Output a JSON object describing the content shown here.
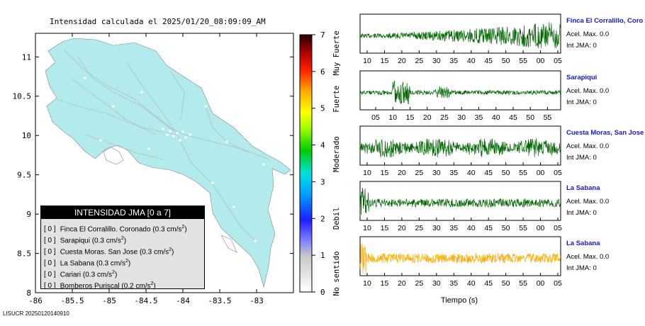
{
  "title": "Intensidad calculada el 2025/01/20_08:09:09_AM",
  "footer": "LISUCR 20250120140910",
  "legend": {
    "title": "INTENSIDAD JMA [0 a 7]",
    "items": [
      {
        "value": "[ 0 ]",
        "label": "Finca El Corralillo. Coronado (0.3 cm/s",
        "sup": "2",
        "tail": ")"
      },
      {
        "value": "[ 0 ]",
        "label": "Sarapiqui (0.3 cm/s",
        "sup": "2",
        "tail": ")"
      },
      {
        "value": "[ 0 ]",
        "label": "Cuesta Moras. San Jose (0.3 cm/s",
        "sup": "2",
        "tail": ")"
      },
      {
        "value": "[ 0 ]",
        "label": "La Sabana (0.3 cm/s",
        "sup": "2",
        "tail": ")"
      },
      {
        "value": "[ 0 ]",
        "label": "Cariari (0.3 cm/s",
        "sup": "2",
        "tail": ")"
      },
      {
        "value": "[ 0 ]",
        "label": "Bomberos Puriscal (0.2 cm/s",
        "sup": "2",
        "tail": ")"
      }
    ]
  },
  "colorbar": {
    "ticks": [
      "0",
      "1",
      "2",
      "3",
      "4",
      "5",
      "6",
      "7"
    ],
    "labels": [
      "No sentido",
      "Debil",
      "Moderado",
      "Fuerte",
      "Muy Fuerte"
    ]
  },
  "waveform_xlabel": "Tiempo (s)",
  "stations": [
    {
      "name": "Finca El Corralillo, Coro",
      "acc": "Acel. Max. 0.0",
      "int": "Int JMA: 0",
      "ticks": [
        "10",
        "15",
        "20",
        "25",
        "30",
        "35",
        "40",
        "45",
        "50",
        "55",
        "00",
        "05"
      ],
      "color": "#006400"
    },
    {
      "name": "Sarapiqui",
      "acc": "Acel. Max. 0.0",
      "int": "Int JMA: 0",
      "ticks": [
        "05",
        "10",
        "15",
        "20",
        "25",
        "30",
        "35",
        "40",
        "45",
        "50",
        "55"
      ],
      "color": "#006400"
    },
    {
      "name": "Cuesta Moras, San Jose",
      "acc": "Acel. Max. 0.0",
      "int": "Int JMA: 0",
      "ticks": [
        "10",
        "15",
        "20",
        "25",
        "30",
        "35",
        "40",
        "45",
        "50",
        "55",
        "00",
        "05"
      ],
      "color": "#006400"
    },
    {
      "name": "La Sabana",
      "acc": "Acel. Max. 0.0",
      "int": "Int JMA: 0",
      "ticks": [
        "10",
        "15",
        "20",
        "25",
        "30",
        "35",
        "40",
        "45",
        "50",
        "55",
        "00",
        "05"
      ],
      "color": "#006400"
    },
    {
      "name": "La Sabana",
      "acc": "Acel. Max. 0.0",
      "int": "Int JMA: 0",
      "ticks": [
        "10",
        "15",
        "20",
        "25",
        "30",
        "35",
        "40",
        "45",
        "50",
        "55",
        "00",
        "05"
      ],
      "color": "#ffaa00"
    }
  ],
  "chart_data": [
    {
      "type": "scatter",
      "title": "Intensidad calculada el 2025/01/20_08:09:09_AM",
      "xlabel": "",
      "ylabel": "",
      "x_ticks": [
        -86,
        -85.5,
        -85,
        -84.5,
        -84,
        -83.5,
        -83
      ],
      "y_ticks": [
        8,
        8.5,
        9,
        9.5,
        10,
        10.5,
        11
      ],
      "xlim": [
        -86,
        -82.5
      ],
      "ylim": [
        8,
        11.3
      ],
      "colors": {
        "land": "#b3ebed",
        "sea": "#ffffff"
      }
    },
    {
      "type": "heatmap",
      "title": "",
      "ylim": [
        0,
        7
      ],
      "ticks": [
        0,
        1,
        2,
        3,
        4,
        5,
        6,
        7
      ],
      "categories": [
        "No sentido",
        "Debil",
        "Moderado",
        "Fuerte",
        "Muy Fuerte"
      ]
    }
  ]
}
